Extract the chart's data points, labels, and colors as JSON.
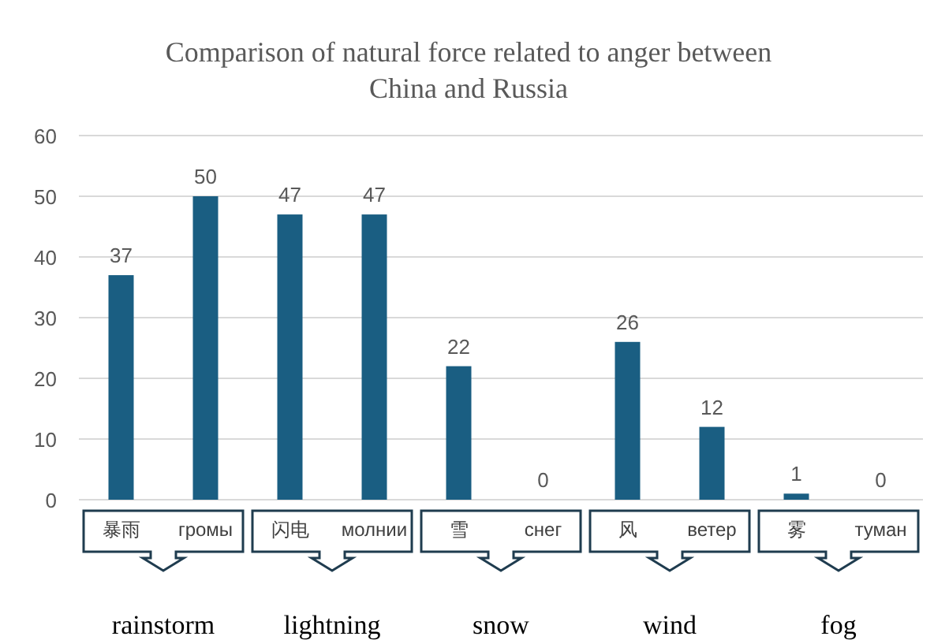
{
  "chart_data": {
    "type": "bar",
    "title": "Comparison of natural force related to anger between China and Russia",
    "categories": [
      "暴雨",
      "громы",
      "闪电",
      "молнии",
      "雪",
      "снег",
      "风",
      "ветер",
      "雾",
      "туман"
    ],
    "values": [
      37,
      50,
      47,
      47,
      22,
      0,
      26,
      12,
      1,
      0
    ],
    "color": "#1a5e82",
    "ylim": [
      0,
      60
    ],
    "yticks": [
      0,
      10,
      20,
      30,
      40,
      50,
      60
    ],
    "grid": "y",
    "data_labels": true,
    "annotations": [
      "rainstorm",
      "lightning",
      "snow",
      "wind",
      "fog"
    ]
  }
}
